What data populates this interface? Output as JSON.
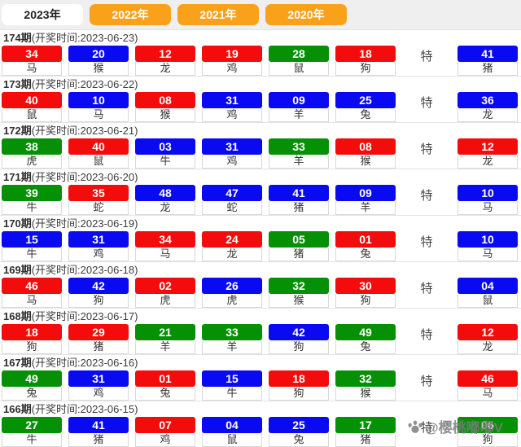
{
  "tabs": [
    {
      "label": "2023年",
      "active": true
    },
    {
      "label": "2022年",
      "active": false
    },
    {
      "label": "2021年",
      "active": false
    },
    {
      "label": "2020年",
      "active": false
    }
  ],
  "special_label": "特",
  "watermark": {
    "handle": "@樱桃嘟嘟V",
    "icon": "paw-icon"
  },
  "colors": {
    "red": "#f40b0b",
    "blue": "#0909f2",
    "green": "#069006",
    "tab_orange": "#f9a11b"
  },
  "draws": [
    {
      "period": "174期",
      "time_label": "(开奖时间:2023-06-23)",
      "numbers": [
        {
          "n": "34",
          "z": "马",
          "c": "red"
        },
        {
          "n": "20",
          "z": "猴",
          "c": "blue"
        },
        {
          "n": "12",
          "z": "龙",
          "c": "red"
        },
        {
          "n": "19",
          "z": "鸡",
          "c": "red"
        },
        {
          "n": "28",
          "z": "鼠",
          "c": "green"
        },
        {
          "n": "18",
          "z": "狗",
          "c": "red"
        }
      ],
      "special": {
        "n": "41",
        "z": "猪",
        "c": "blue"
      }
    },
    {
      "period": "173期",
      "time_label": "(开奖时间:2023-06-22)",
      "numbers": [
        {
          "n": "40",
          "z": "鼠",
          "c": "red"
        },
        {
          "n": "10",
          "z": "马",
          "c": "blue"
        },
        {
          "n": "08",
          "z": "猴",
          "c": "red"
        },
        {
          "n": "31",
          "z": "鸡",
          "c": "blue"
        },
        {
          "n": "09",
          "z": "羊",
          "c": "blue"
        },
        {
          "n": "25",
          "z": "兔",
          "c": "blue"
        }
      ],
      "special": {
        "n": "36",
        "z": "龙",
        "c": "blue"
      }
    },
    {
      "period": "172期",
      "time_label": "(开奖时间:2023-06-21)",
      "numbers": [
        {
          "n": "38",
          "z": "虎",
          "c": "green"
        },
        {
          "n": "40",
          "z": "鼠",
          "c": "red"
        },
        {
          "n": "03",
          "z": "牛",
          "c": "blue"
        },
        {
          "n": "31",
          "z": "鸡",
          "c": "blue"
        },
        {
          "n": "33",
          "z": "羊",
          "c": "green"
        },
        {
          "n": "08",
          "z": "猴",
          "c": "red"
        }
      ],
      "special": {
        "n": "12",
        "z": "龙",
        "c": "red"
      }
    },
    {
      "period": "171期",
      "time_label": "(开奖时间:2023-06-20)",
      "numbers": [
        {
          "n": "39",
          "z": "牛",
          "c": "green"
        },
        {
          "n": "35",
          "z": "蛇",
          "c": "red"
        },
        {
          "n": "48",
          "z": "龙",
          "c": "blue"
        },
        {
          "n": "47",
          "z": "蛇",
          "c": "blue"
        },
        {
          "n": "41",
          "z": "猪",
          "c": "blue"
        },
        {
          "n": "09",
          "z": "羊",
          "c": "blue"
        }
      ],
      "special": {
        "n": "10",
        "z": "马",
        "c": "blue"
      }
    },
    {
      "period": "170期",
      "time_label": "(开奖时间:2023-06-19)",
      "numbers": [
        {
          "n": "15",
          "z": "牛",
          "c": "blue"
        },
        {
          "n": "31",
          "z": "鸡",
          "c": "blue"
        },
        {
          "n": "34",
          "z": "马",
          "c": "red"
        },
        {
          "n": "24",
          "z": "龙",
          "c": "red"
        },
        {
          "n": "05",
          "z": "猪",
          "c": "green"
        },
        {
          "n": "01",
          "z": "兔",
          "c": "red"
        }
      ],
      "special": {
        "n": "10",
        "z": "马",
        "c": "blue"
      }
    },
    {
      "period": "169期",
      "time_label": "(开奖时间:2023-06-18)",
      "numbers": [
        {
          "n": "46",
          "z": "马",
          "c": "red"
        },
        {
          "n": "42",
          "z": "狗",
          "c": "blue"
        },
        {
          "n": "02",
          "z": "虎",
          "c": "red"
        },
        {
          "n": "26",
          "z": "虎",
          "c": "blue"
        },
        {
          "n": "32",
          "z": "猴",
          "c": "green"
        },
        {
          "n": "30",
          "z": "狗",
          "c": "red"
        }
      ],
      "special": {
        "n": "04",
        "z": "鼠",
        "c": "blue"
      }
    },
    {
      "period": "168期",
      "time_label": "(开奖时间:2023-06-17)",
      "numbers": [
        {
          "n": "18",
          "z": "狗",
          "c": "red"
        },
        {
          "n": "29",
          "z": "猪",
          "c": "red"
        },
        {
          "n": "21",
          "z": "羊",
          "c": "green"
        },
        {
          "n": "33",
          "z": "羊",
          "c": "green"
        },
        {
          "n": "42",
          "z": "狗",
          "c": "blue"
        },
        {
          "n": "49",
          "z": "兔",
          "c": "green"
        }
      ],
      "special": {
        "n": "12",
        "z": "龙",
        "c": "red"
      }
    },
    {
      "period": "167期",
      "time_label": "(开奖时间:2023-06-16)",
      "numbers": [
        {
          "n": "49",
          "z": "兔",
          "c": "green"
        },
        {
          "n": "31",
          "z": "鸡",
          "c": "blue"
        },
        {
          "n": "01",
          "z": "兔",
          "c": "red"
        },
        {
          "n": "15",
          "z": "牛",
          "c": "blue"
        },
        {
          "n": "18",
          "z": "狗",
          "c": "red"
        },
        {
          "n": "32",
          "z": "猴",
          "c": "green"
        }
      ],
      "special": {
        "n": "46",
        "z": "马",
        "c": "red"
      }
    },
    {
      "period": "166期",
      "time_label": "(开奖时间:2023-06-15)",
      "numbers": [
        {
          "n": "27",
          "z": "牛",
          "c": "green"
        },
        {
          "n": "41",
          "z": "猪",
          "c": "blue"
        },
        {
          "n": "07",
          "z": "鸡",
          "c": "red"
        },
        {
          "n": "04",
          "z": "鼠",
          "c": "blue"
        },
        {
          "n": "25",
          "z": "兔",
          "c": "blue"
        },
        {
          "n": "17",
          "z": "猪",
          "c": "green"
        }
      ],
      "special": {
        "n": "06",
        "z": "狗",
        "c": "green"
      }
    }
  ]
}
